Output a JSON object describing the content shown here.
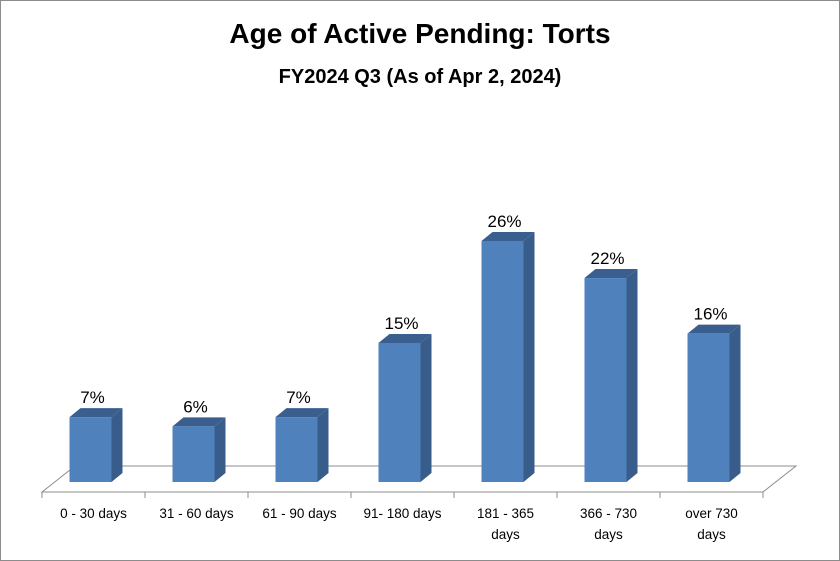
{
  "chart_data": {
    "type": "bar",
    "title": "Age of Active Pending: Torts",
    "subtitle": "FY2024 Q3 (As of Apr 2, 2024)",
    "categories": [
      "0 - 30 days",
      "31 - 60 days",
      "61 - 90 days",
      "91- 180 days",
      "181 - 365 days",
      "366 - 730 days",
      "over 730 days"
    ],
    "category_lines": [
      [
        "0 - 30 days"
      ],
      [
        "31 - 60 days"
      ],
      [
        "61 - 90 days"
      ],
      [
        "91- 180 days"
      ],
      [
        "181 - 365",
        "days"
      ],
      [
        "366 - 730",
        "days"
      ],
      [
        "over 730",
        "days"
      ]
    ],
    "values": [
      7,
      6,
      7,
      15,
      26,
      22,
      16
    ],
    "data_labels": [
      "7%",
      "6%",
      "7%",
      "15%",
      "26%",
      "22%",
      "16%"
    ],
    "unit": "%",
    "ylim": [
      0,
      30
    ],
    "grid": false,
    "legend": "none",
    "bar_color": "#4f81bd",
    "bar_side_color": "#385d8a",
    "bar_top_color": "#3a5f8f"
  }
}
